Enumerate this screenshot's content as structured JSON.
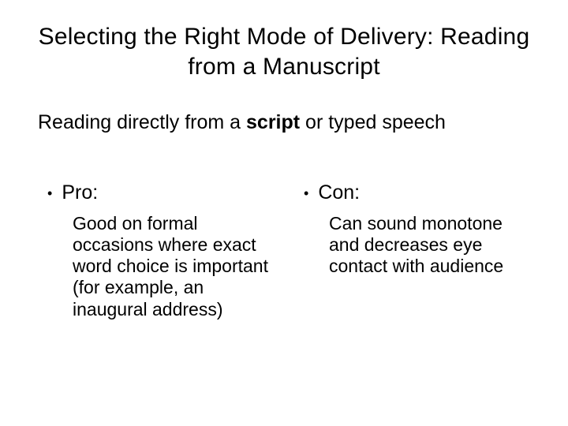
{
  "slide": {
    "title": "Selecting the Right Mode of Delivery: Reading from a Manuscript",
    "subtitle_pre": "Reading directly from a ",
    "subtitle_bold": "script",
    "subtitle_post": " or typed speech",
    "pro": {
      "label": "Pro:",
      "text": "Good on formal occasions where exact word choice is important (for example, an inaugural address)"
    },
    "con": {
      "label": "Con:",
      "text": "Can sound monotone and decreases eye contact with audience"
    },
    "bullet_char": "•"
  },
  "style": {
    "background_color": "#ffffff",
    "text_color": "#000000",
    "title_fontsize": 30,
    "subtitle_fontsize": 25,
    "bullet_head_fontsize": 25,
    "body_fontsize": 23,
    "font_family": "Arial"
  }
}
